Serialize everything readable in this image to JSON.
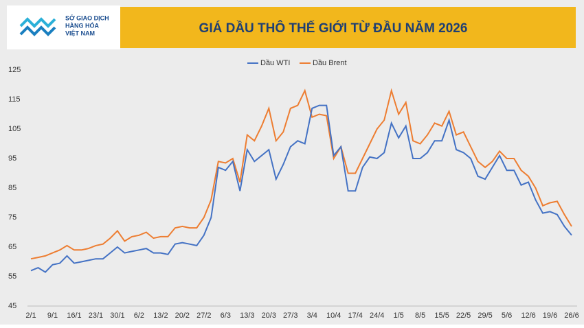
{
  "logo": {
    "lines": [
      "SỞ GIAO DỊCH",
      "HÀNG HÓA",
      "VIỆT NAM"
    ]
  },
  "chart_data": {
    "type": "line",
    "title": "GIÁ DẦU THÔ THẾ GIỚI TỪ ĐẦU NĂM 2026",
    "categories": [
      "2/1",
      null,
      null,
      "9/1",
      null,
      null,
      "16/1",
      null,
      null,
      "23/1",
      null,
      null,
      "30/1",
      null,
      null,
      "6/2",
      null,
      null,
      "13/2",
      null,
      null,
      "20/2",
      null,
      null,
      "27/2",
      null,
      null,
      "6/3",
      null,
      null,
      "13/3",
      null,
      null,
      "20/3",
      null,
      null,
      "27/3",
      null,
      null,
      "3/4",
      null,
      null,
      "10/4",
      null,
      null,
      "17/4",
      null,
      null,
      "24/4",
      null,
      null,
      "1/5",
      null,
      null,
      "8/5",
      null,
      null,
      "15/5",
      null,
      null,
      "22/5",
      null,
      null,
      "29/5",
      null,
      null,
      "5/6",
      null,
      null,
      "12/6",
      null,
      null,
      "19/6",
      null,
      null,
      "26/6"
    ],
    "series": [
      {
        "name": "Dầu WTI",
        "color": "#4472c4",
        "values": [
          57,
          58,
          56.5,
          59,
          59.5,
          62,
          59.5,
          60,
          60.5,
          61,
          61,
          63,
          65,
          63,
          63.5,
          64,
          64.5,
          63,
          63,
          62.5,
          66,
          66.5,
          66,
          65.5,
          69,
          75,
          92,
          91,
          94,
          84,
          98,
          94,
          96,
          98,
          88,
          93,
          99,
          101,
          100,
          112,
          113,
          113,
          96,
          99,
          84,
          84,
          92,
          95.5,
          95,
          97,
          107,
          102,
          106,
          95,
          95,
          97,
          101,
          101,
          108,
          98,
          97,
          95,
          89,
          88,
          92,
          96,
          91,
          91,
          86,
          87,
          81,
          76.5,
          77,
          76,
          72,
          69
        ]
      },
      {
        "name": "Dầu Brent",
        "color": "#ed7d31",
        "values": [
          61,
          61.5,
          62,
          63,
          64,
          65.5,
          64,
          64,
          64.5,
          65.5,
          66,
          68,
          70.5,
          67,
          68.5,
          69,
          70,
          68,
          68.5,
          68.5,
          71.5,
          72,
          71.5,
          71.5,
          75,
          81,
          94,
          93.5,
          95,
          87,
          103,
          101,
          106,
          112,
          101,
          104,
          112,
          113,
          118,
          109,
          110,
          109.5,
          95,
          99,
          90,
          90,
          95,
          100,
          105,
          108,
          118,
          110,
          114,
          101,
          100,
          103,
          107,
          106,
          111,
          103,
          104,
          99,
          94,
          92,
          94,
          97.5,
          95,
          95,
          91,
          89,
          85,
          79,
          80,
          80.5,
          76,
          72
        ]
      }
    ],
    "ylim": [
      45,
      125
    ],
    "yticks": [
      45,
      55,
      65,
      75,
      85,
      95,
      105,
      115,
      125
    ],
    "legend": "top"
  }
}
